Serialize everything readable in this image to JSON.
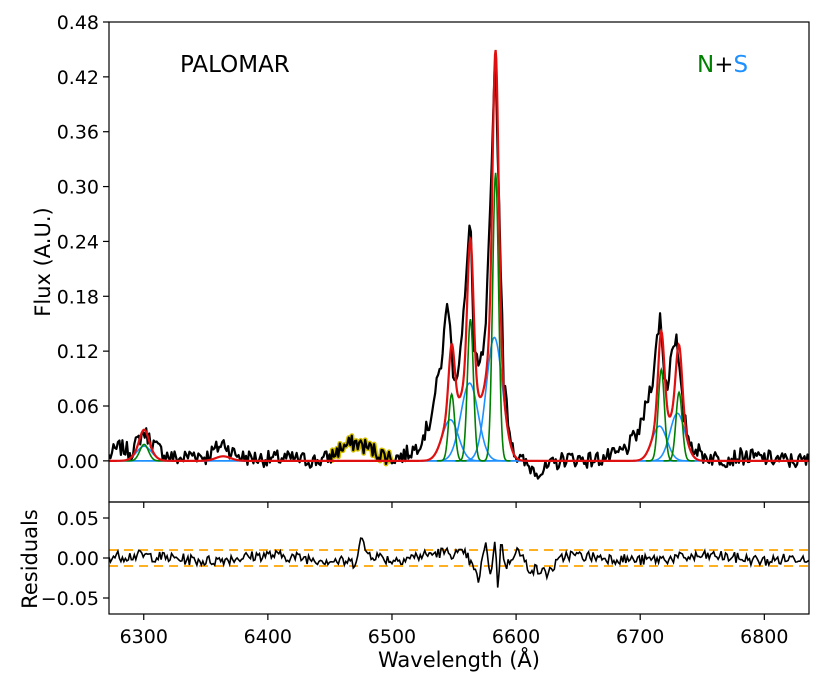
{
  "chart_data": [
    {
      "type": "line",
      "panel": "flux",
      "ylabel": "Flux (A.U.)",
      "annotation": "PALOMAR",
      "legend": {
        "placement": "top-right",
        "parts": [
          {
            "text": "N",
            "color": "#008000"
          },
          {
            "text": "+",
            "color": "#000000"
          },
          {
            "text": "S",
            "color": "#1e90ff"
          }
        ]
      },
      "xlim": [
        6272,
        6836
      ],
      "ylim": [
        -0.045,
        0.48
      ],
      "xticks": [
        6300,
        6400,
        6500,
        6600,
        6700,
        6800
      ],
      "yticks": [
        0.0,
        0.06,
        0.12,
        0.18,
        0.24,
        0.3,
        0.36,
        0.42,
        0.48
      ],
      "ytick_labels": [
        "0.00",
        "0.06",
        "0.12",
        "0.18",
        "0.24",
        "0.30",
        "0.36",
        "0.42",
        "0.48"
      ],
      "series": [
        {
          "role": "observed",
          "color": "#000000",
          "x": [
            6272,
            6280,
            6290,
            6300,
            6310,
            6320,
            6330,
            6340,
            6350,
            6360,
            6365,
            6370,
            6380,
            6390,
            6400,
            6410,
            6420,
            6430,
            6440,
            6450,
            6460,
            6470,
            6480,
            6490,
            6500,
            6510,
            6520,
            6530,
            6540,
            6545,
            6549,
            6552,
            6556,
            6560,
            6563,
            6566,
            6570,
            6575,
            6580,
            6583,
            6586,
            6590,
            6595,
            6600,
            6610,
            6620,
            6630,
            6640,
            6650,
            6660,
            6670,
            6680,
            6690,
            6700,
            6710,
            6716,
            6719,
            6722,
            6726,
            6729,
            6732,
            6735,
            6740,
            6750,
            6760,
            6770,
            6780,
            6790,
            6800,
            6810,
            6820,
            6836
          ],
          "y": [
            0.005,
            0.015,
            0.01,
            0.032,
            0.015,
            0.005,
            0.002,
            0.008,
            0.004,
            0.015,
            0.02,
            0.01,
            0.004,
            0.003,
            0.002,
            0.003,
            0.002,
            0.001,
            0.0,
            0.004,
            0.015,
            0.02,
            0.015,
            0.008,
            0.003,
            0.006,
            0.015,
            0.04,
            0.11,
            0.18,
            0.1,
            0.09,
            0.13,
            0.2,
            0.28,
            0.12,
            0.1,
            0.13,
            0.3,
            0.45,
            0.3,
            0.09,
            0.03,
            0.005,
            -0.006,
            -0.012,
            -0.004,
            0.003,
            0.002,
            0.001,
            0.003,
            0.006,
            0.015,
            0.035,
            0.09,
            0.16,
            0.1,
            0.08,
            0.13,
            0.135,
            0.09,
            0.05,
            0.02,
            0.006,
            0.003,
            0.002,
            0.005,
            0.004,
            0.003,
            0.002,
            0.0,
            0.0
          ]
        },
        {
          "role": "masked",
          "color": "#d4c000",
          "x": [
            6450,
            6500
          ]
        },
        {
          "role": "total_fit",
          "color": "#e01010"
        },
        {
          "role": "narrow",
          "color": "#008000",
          "components": [
            {
              "center": 6300.3,
              "amp": 0.018,
              "sigma": 3.5
            },
            {
              "center": 6548.1,
              "amp": 0.073,
              "sigma": 2.4
            },
            {
              "center": 6563.2,
              "amp": 0.155,
              "sigma": 2.4
            },
            {
              "center": 6583.5,
              "amp": 0.315,
              "sigma": 2.4
            },
            {
              "center": 6717.0,
              "amp": 0.1,
              "sigma": 2.5
            },
            {
              "center": 6731.3,
              "amp": 0.075,
              "sigma": 2.5
            }
          ]
        },
        {
          "role": "broad",
          "color": "#1e90ff",
          "components": [
            {
              "center": 6300.3,
              "amp": 0.016,
              "sigma": 6
            },
            {
              "center": 6364.0,
              "amp": 0.005,
              "sigma": 6
            },
            {
              "center": 6547.0,
              "amp": 0.045,
              "sigma": 6.5
            },
            {
              "center": 6562.5,
              "amp": 0.085,
              "sigma": 7
            },
            {
              "center": 6582.5,
              "amp": 0.135,
              "sigma": 6.5
            },
            {
              "center": 6715.5,
              "amp": 0.038,
              "sigma": 6
            },
            {
              "center": 6730.0,
              "amp": 0.052,
              "sigma": 6
            }
          ]
        }
      ]
    },
    {
      "type": "line",
      "panel": "residuals",
      "xlabel": "Wavelength (Å)",
      "ylabel": "Residuals",
      "xlim": [
        6272,
        6836
      ],
      "ylim": [
        -0.07,
        0.07
      ],
      "xticks": [
        6300,
        6400,
        6500,
        6600,
        6700,
        6800
      ],
      "yticks": [
        0.05,
        0.0,
        -0.05
      ],
      "ytick_labels": [
        "0.05",
        "0.00",
        "−0.05"
      ],
      "threshold": {
        "value": 0.01,
        "color": "#ffa500",
        "style": "dashed"
      },
      "series": [
        {
          "role": "residual",
          "color": "#000000",
          "x": [
            6272,
            6300,
            6350,
            6400,
            6450,
            6470,
            6475,
            6480,
            6500,
            6540,
            6560,
            6570,
            6575,
            6580,
            6583,
            6585,
            6588,
            6592,
            6600,
            6610,
            6625,
            6640,
            6700,
            6760,
            6800,
            6836
          ],
          "y": [
            0.002,
            0.003,
            -0.004,
            0.004,
            -0.003,
            -0.006,
            0.024,
            0.006,
            -0.003,
            0.007,
            0.004,
            -0.028,
            0.018,
            -0.022,
            0.028,
            -0.038,
            0.02,
            -0.012,
            0.012,
            -0.012,
            -0.019,
            0.004,
            -0.003,
            0.003,
            -0.004,
            0.002
          ]
        }
      ]
    }
  ]
}
